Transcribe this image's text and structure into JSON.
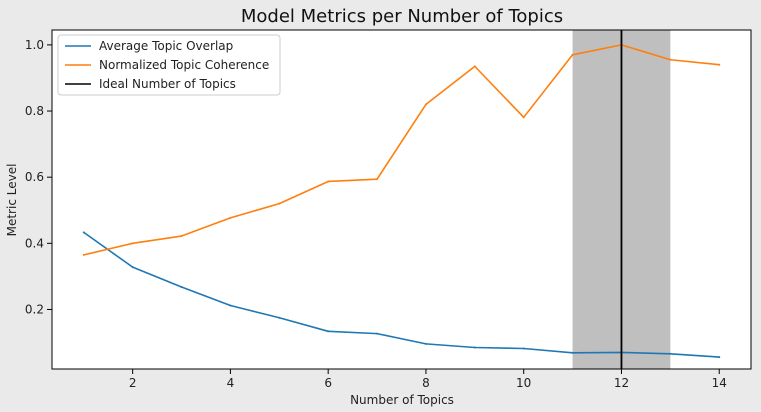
{
  "chart_data": {
    "type": "line",
    "title": "Model Metrics per Number of Topics",
    "xlabel": "Number of Topics",
    "ylabel": "Metric Level",
    "xlim": [
      0.35,
      14.65
    ],
    "ylim": [
      0.02,
      1.045
    ],
    "xticks": [
      2,
      4,
      6,
      8,
      10,
      12,
      14
    ],
    "yticks": [
      0.2,
      0.4,
      0.6,
      0.8,
      1.0
    ],
    "x": [
      1,
      2,
      3,
      4,
      5,
      6,
      7,
      8,
      9,
      10,
      11,
      12,
      13,
      14
    ],
    "series": [
      {
        "name": "Average Topic Overlap",
        "color": "#1f77b4",
        "values": [
          0.433,
          0.328,
          0.268,
          0.212,
          0.175,
          0.134,
          0.127,
          0.096,
          0.085,
          0.082,
          0.069,
          0.07,
          0.066,
          0.056
        ]
      },
      {
        "name": "Normalized Topic Coherence",
        "color": "#ff7f0e",
        "values": [
          0.365,
          0.4,
          0.422,
          0.477,
          0.52,
          0.587,
          0.594,
          0.82,
          0.935,
          0.781,
          0.97,
          1.0,
          0.955,
          0.94
        ]
      }
    ],
    "ideal": {
      "name": "Ideal Number of Topics",
      "x": 12,
      "color": "#000000",
      "band": [
        11,
        13
      ],
      "band_color": "#bfbfbf"
    },
    "grid": false,
    "legend_position": "upper-left"
  }
}
